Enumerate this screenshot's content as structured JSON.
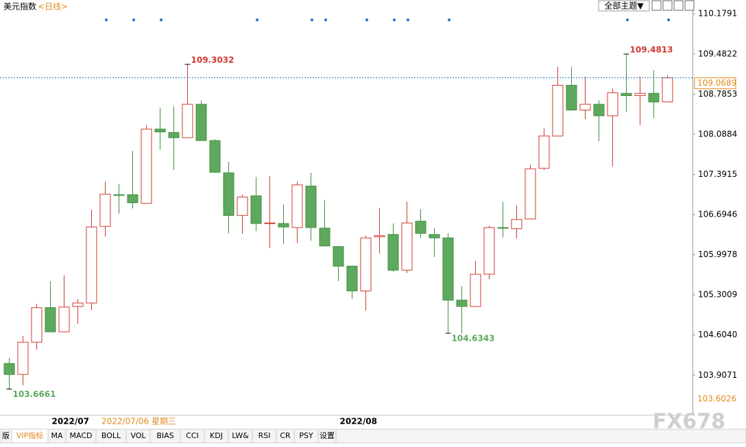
{
  "chart_data": {
    "type": "candlestick",
    "title": "美元指数",
    "subtitle": "<日线>",
    "categories": [
      null,
      null,
      null,
      null,
      "2022/07",
      null,
      null,
      null,
      null,
      null,
      null,
      null,
      null,
      null,
      null,
      null,
      null,
      null,
      null,
      null,
      null,
      null,
      null,
      null,
      null,
      "2022/08",
      null,
      null,
      null,
      null,
      null,
      null,
      null,
      null,
      null,
      null,
      null,
      null,
      null,
      null,
      null,
      null,
      null,
      null,
      null,
      null,
      null,
      null,
      null
    ],
    "open": [
      104.11,
      103.92,
      104.48,
      105.08,
      104.66,
      105.1,
      105.16,
      106.49,
      107.04,
      107.04,
      106.89,
      108.18,
      108.12,
      108.03,
      108.61,
      107.98,
      107.42,
      106.68,
      107.02,
      106.54,
      106.54,
      106.47,
      107.19,
      106.46,
      106.14,
      105.8,
      105.37,
      106.31,
      106.35,
      105.73,
      106.58,
      106.35,
      106.29,
      105.21,
      105.1,
      105.66,
      106.47,
      106.45,
      106.62,
      107.5,
      108.06,
      108.94,
      108.51,
      108.61,
      108.41,
      108.8,
      108.76,
      108.8,
      108.65
    ],
    "high": [
      104.21,
      104.59,
      105.14,
      105.54,
      105.64,
      105.23,
      106.78,
      107.27,
      107.23,
      107.8,
      108.24,
      108.55,
      108.57,
      109.3032,
      108.68,
      108,
      107.61,
      107.04,
      107.35,
      107.36,
      106.87,
      107.27,
      107.42,
      106.95,
      106.15,
      105.8,
      106.33,
      106.81,
      106.54,
      106.92,
      106.79,
      106.46,
      106.37,
      105.45,
      105.89,
      106.5,
      106.92,
      106.85,
      107.56,
      108.19,
      109.26,
      109.26,
      109.09,
      108.68,
      108.88,
      109.4813,
      109.09,
      109.2,
      109.11
    ],
    "low": [
      103.6661,
      103.73,
      104.35,
      104.66,
      104.66,
      104.8,
      105.04,
      106.31,
      106.71,
      106.8,
      106.89,
      107.82,
      107.47,
      108.03,
      107.98,
      107.42,
      106.37,
      106.36,
      106.41,
      106.11,
      106.18,
      106.2,
      106.24,
      106.14,
      105.54,
      105.23,
      105.03,
      106.02,
      105.7,
      105.68,
      106.29,
      105.96,
      104.6343,
      104.63,
      105.1,
      105.57,
      106.3,
      106.28,
      106.61,
      107.47,
      108.06,
      108.51,
      108.35,
      107.97,
      107.53,
      108.47,
      108.25,
      108.37,
      108.65
    ],
    "close": [
      103.92,
      104.48,
      105.08,
      104.66,
      105.09,
      105.16,
      106.48,
      107.05,
      107.03,
      106.9,
      108.18,
      108.13,
      108.03,
      108.61,
      107.98,
      107.43,
      106.68,
      107,
      106.54,
      106.55,
      106.48,
      107.21,
      106.47,
      106.15,
      105.8,
      105.37,
      106.29,
      106.33,
      105.73,
      106.55,
      106.37,
      106.29,
      105.21,
      105.1,
      105.66,
      106.47,
      106.46,
      106.61,
      107.49,
      108.06,
      108.94,
      108.51,
      108.61,
      108.41,
      108.81,
      108.76,
      108.8,
      108.65,
      109.0689
    ],
    "up_color": "#d03a2f",
    "down_color": "#5ea95e",
    "line_color": "#1a73c9",
    "ylim": [
      103.22,
      110.42
    ],
    "yticks": [
      110.1791,
      109.4822,
      108.7853,
      108.0884,
      107.3915,
      106.6946,
      105.9978,
      105.3009,
      {
        "value": 104.604,
        "label": "104.6040"
      },
      103.9071
    ],
    "range_low": 103.6026,
    "cursor_date": "2022/07/06 星期三"
  },
  "ui": {
    "theme_button": "全部主题▼",
    "tabs": [
      "版",
      "VIP指标",
      "MA",
      "MACD",
      "BOLL",
      "VOL",
      "BIAS",
      "CCI",
      "KDJ",
      "LW&",
      "RSI",
      "CR",
      "PSY",
      "设置"
    ],
    "watermark": "FX678"
  }
}
